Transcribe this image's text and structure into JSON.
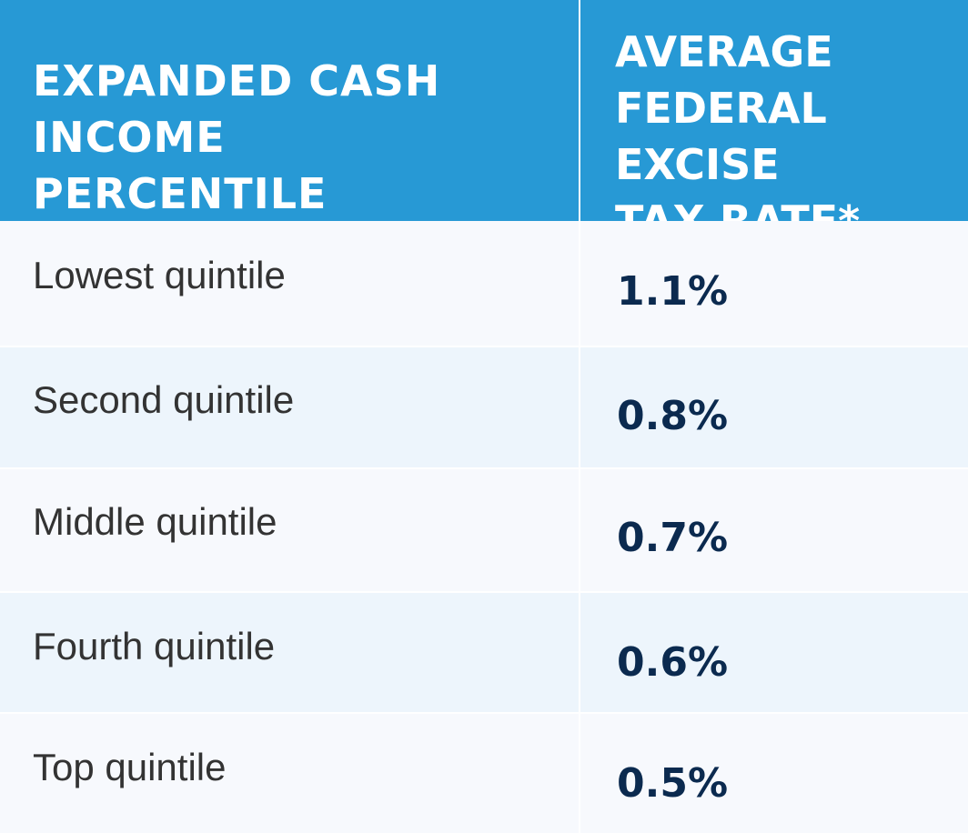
{
  "chart_data": {
    "type": "table",
    "columns": [
      "Expanded Cash Income Percentile",
      "Average Federal Excise Tax Rate*"
    ],
    "rows": [
      {
        "label": "Lowest quintile",
        "value": "1.1%"
      },
      {
        "label": "Second quintile",
        "value": "0.8%"
      },
      {
        "label": "Middle quintile",
        "value": "0.7%"
      },
      {
        "label": "Fourth quintile",
        "value": "0.6%"
      },
      {
        "label": "Top quintile",
        "value": "0.5%"
      }
    ]
  },
  "colors": {
    "header_bg": "#2799d5",
    "header_text": "#ffffff",
    "row_light": "#f7f9fd",
    "row_tint": "#edf5fc",
    "label_text": "#333333",
    "value_text": "#0b2a4f"
  }
}
